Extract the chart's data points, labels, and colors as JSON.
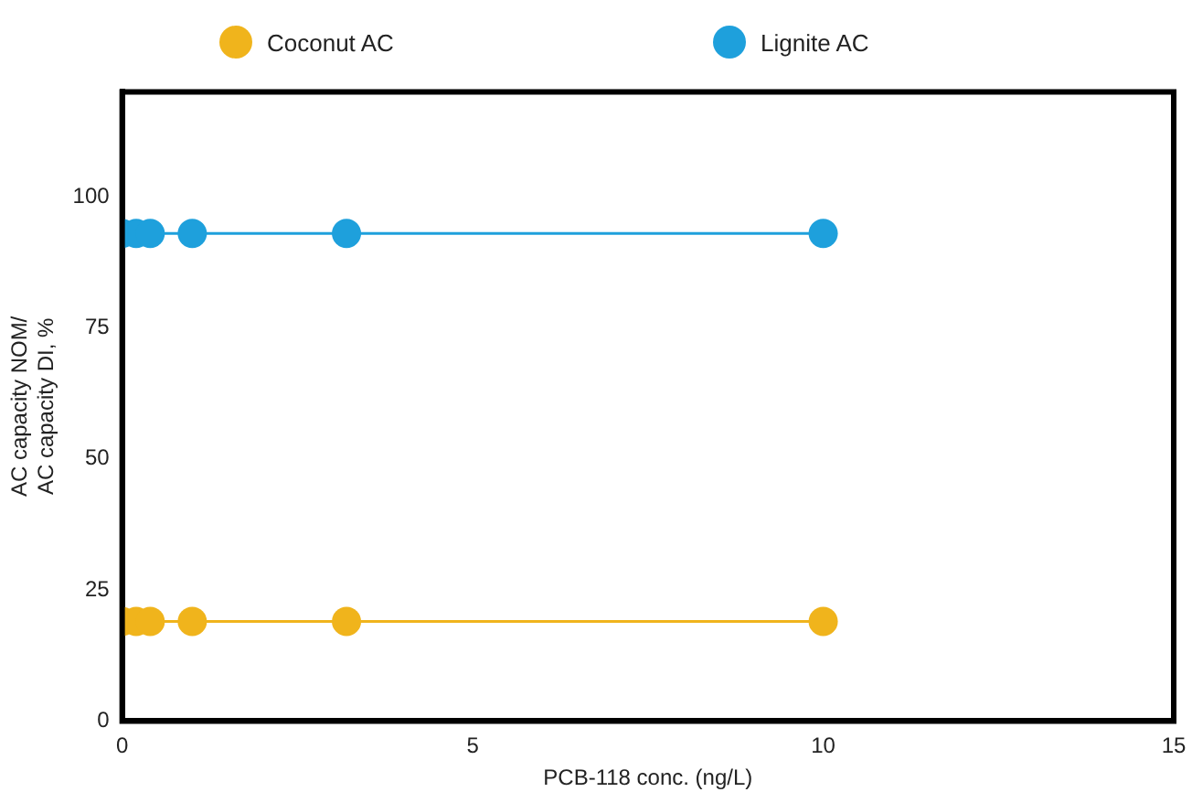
{
  "chart_data": {
    "type": "line",
    "xlabel": "PCB-118 conc. (ng/L)",
    "ylabel": "AC capacity NOM/\nAC capacity DI, %",
    "x": [
      0,
      0.2,
      0.4,
      1,
      3.2,
      10
    ],
    "series": [
      {
        "name": "Coconut AC",
        "color": "#f0b41c",
        "values": [
          19,
          19,
          19,
          19,
          19,
          19
        ]
      },
      {
        "name": "Lignite AC",
        "color": "#1ea0dc",
        "values": [
          93,
          93,
          93,
          93,
          93,
          93
        ]
      }
    ],
    "xlim": [
      0,
      15
    ],
    "xticks": [
      0,
      5,
      10,
      15
    ],
    "ylim": [
      0,
      120
    ],
    "yticks": [
      0,
      25,
      50,
      75,
      100
    ],
    "grid": false,
    "legend": "top",
    "marker": "circle",
    "line_style": "solid"
  }
}
